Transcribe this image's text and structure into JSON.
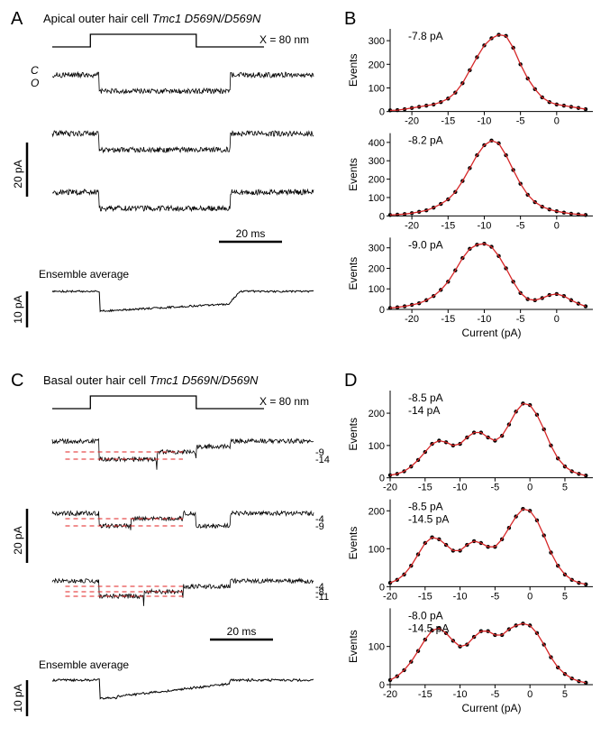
{
  "panels": {
    "A": {
      "label": "A",
      "title_prefix": "Apical outer hair cell ",
      "title_genotype": "Tmc1 D569N/D569N",
      "stimulus_label": "X = 80 nm",
      "state_closed": "C",
      "state_open": "O",
      "scale_y1": "20 pA",
      "scale_x": "20 ms",
      "ensemble_label": "Ensemble average",
      "scale_y2": "10 pA"
    },
    "B": {
      "label": "B",
      "ylabel": "Events",
      "xlabel": "Current (pA)",
      "charts": [
        {
          "peak_label": "-7.8 pA",
          "xlim": [
            -23,
            5
          ],
          "ylim": [
            0,
            350
          ],
          "xticks": [
            -20,
            -15,
            -10,
            -5,
            0
          ],
          "yticks": [
            0,
            100,
            200,
            300
          ],
          "data": [
            [
              -23,
              5
            ],
            [
              -22,
              6
            ],
            [
              -21,
              10
            ],
            [
              -20,
              15
            ],
            [
              -19,
              20
            ],
            [
              -18,
              25
            ],
            [
              -17,
              30
            ],
            [
              -16,
              40
            ],
            [
              -15,
              55
            ],
            [
              -14,
              80
            ],
            [
              -13,
              120
            ],
            [
              -12,
              175
            ],
            [
              -11,
              230
            ],
            [
              -10,
              280
            ],
            [
              -9,
              310
            ],
            [
              -8,
              325
            ],
            [
              -7,
              320
            ],
            [
              -6,
              270
            ],
            [
              -5,
              200
            ],
            [
              -4,
              140
            ],
            [
              -3,
              95
            ],
            [
              -2,
              60
            ],
            [
              -1,
              40
            ],
            [
              0,
              30
            ],
            [
              1,
              25
            ],
            [
              2,
              20
            ],
            [
              3,
              15
            ],
            [
              4,
              10
            ]
          ]
        },
        {
          "peak_label": "-8.2 pA",
          "xlim": [
            -23,
            5
          ],
          "ylim": [
            0,
            450
          ],
          "xticks": [
            -20,
            -15,
            -10,
            -5,
            0
          ],
          "yticks": [
            0,
            100,
            200,
            300,
            400
          ],
          "data": [
            [
              -23,
              5
            ],
            [
              -22,
              7
            ],
            [
              -21,
              10
            ],
            [
              -20,
              15
            ],
            [
              -19,
              22
            ],
            [
              -18,
              30
            ],
            [
              -17,
              45
            ],
            [
              -16,
              65
            ],
            [
              -15,
              90
            ],
            [
              -14,
              130
            ],
            [
              -13,
              190
            ],
            [
              -12,
              260
            ],
            [
              -11,
              330
            ],
            [
              -10,
              385
            ],
            [
              -9,
              410
            ],
            [
              -8,
              395
            ],
            [
              -7,
              330
            ],
            [
              -6,
              250
            ],
            [
              -5,
              175
            ],
            [
              -4,
              115
            ],
            [
              -3,
              75
            ],
            [
              -2,
              50
            ],
            [
              -1,
              35
            ],
            [
              0,
              25
            ],
            [
              1,
              18
            ],
            [
              2,
              12
            ],
            [
              3,
              8
            ],
            [
              4,
              5
            ]
          ]
        },
        {
          "peak_label": "-9.0 pA",
          "xlim": [
            -23,
            5
          ],
          "ylim": [
            0,
            350
          ],
          "xticks": [
            -20,
            -15,
            -10,
            -5,
            0
          ],
          "yticks": [
            0,
            100,
            200,
            300
          ],
          "data": [
            [
              -23,
              7
            ],
            [
              -22,
              10
            ],
            [
              -21,
              15
            ],
            [
              -20,
              22
            ],
            [
              -19,
              30
            ],
            [
              -18,
              45
            ],
            [
              -17,
              65
            ],
            [
              -16,
              95
            ],
            [
              -15,
              135
            ],
            [
              -14,
              190
            ],
            [
              -13,
              250
            ],
            [
              -12,
              295
            ],
            [
              -11,
              315
            ],
            [
              -10,
              320
            ],
            [
              -9,
              305
            ],
            [
              -8,
              260
            ],
            [
              -7,
              200
            ],
            [
              -6,
              135
            ],
            [
              -5,
              80
            ],
            [
              -4,
              50
            ],
            [
              -3,
              45
            ],
            [
              -2,
              55
            ],
            [
              -1,
              70
            ],
            [
              0,
              75
            ],
            [
              1,
              65
            ],
            [
              2,
              45
            ],
            [
              3,
              28
            ],
            [
              4,
              15
            ]
          ]
        }
      ]
    },
    "C": {
      "label": "C",
      "title_prefix": "Basal outer hair cell ",
      "title_genotype": "Tmc1 D569N/D569N",
      "stimulus_label": "X = 80 nm",
      "scale_y1": "20 pA",
      "scale_x": "20 ms",
      "ensemble_label": "Ensemble average",
      "scale_y2": "10 pA",
      "levels": {
        "trace1": [
          "-9",
          "-14"
        ],
        "trace2": [
          "-4",
          "-9"
        ],
        "trace3": [
          "-4",
          "-8",
          "-11"
        ]
      }
    },
    "D": {
      "label": "D",
      "ylabel": "Events",
      "xlabel": "Current (pA)",
      "charts": [
        {
          "peak_labels": [
            "-8.5 pA",
            "-14 pA"
          ],
          "xlim": [
            -20,
            9
          ],
          "ylim": [
            0,
            270
          ],
          "xticks": [
            -20,
            -15,
            -10,
            -5,
            0,
            5
          ],
          "yticks": [
            0,
            100,
            200
          ],
          "data": [
            [
              -20,
              8
            ],
            [
              -19,
              12
            ],
            [
              -18,
              20
            ],
            [
              -17,
              35
            ],
            [
              -16,
              55
            ],
            [
              -15,
              80
            ],
            [
              -14,
              105
            ],
            [
              -13,
              115
            ],
            [
              -12,
              110
            ],
            [
              -11,
              100
            ],
            [
              -10,
              105
            ],
            [
              -9,
              125
            ],
            [
              -8,
              140
            ],
            [
              -7,
              140
            ],
            [
              -6,
              125
            ],
            [
              -5,
              115
            ],
            [
              -4,
              130
            ],
            [
              -3,
              165
            ],
            [
              -2,
              205
            ],
            [
              -1,
              230
            ],
            [
              0,
              225
            ],
            [
              1,
              195
            ],
            [
              2,
              150
            ],
            [
              3,
              100
            ],
            [
              4,
              60
            ],
            [
              5,
              35
            ],
            [
              6,
              20
            ],
            [
              7,
              12
            ],
            [
              8,
              7
            ]
          ]
        },
        {
          "peak_labels": [
            "-8.5 pA",
            "-14.5 pA"
          ],
          "xlim": [
            -20,
            9
          ],
          "ylim": [
            0,
            230
          ],
          "xticks": [
            -20,
            -15,
            -10,
            -5,
            0,
            5
          ],
          "yticks": [
            0,
            100,
            200
          ],
          "data": [
            [
              -20,
              10
            ],
            [
              -19,
              18
            ],
            [
              -18,
              32
            ],
            [
              -17,
              55
            ],
            [
              -16,
              85
            ],
            [
              -15,
              115
            ],
            [
              -14,
              130
            ],
            [
              -13,
              125
            ],
            [
              -12,
              110
            ],
            [
              -11,
              95
            ],
            [
              -10,
              95
            ],
            [
              -9,
              110
            ],
            [
              -8,
              120
            ],
            [
              -7,
              115
            ],
            [
              -6,
              105
            ],
            [
              -5,
              105
            ],
            [
              -4,
              125
            ],
            [
              -3,
              155
            ],
            [
              -2,
              185
            ],
            [
              -1,
              205
            ],
            [
              0,
              200
            ],
            [
              1,
              175
            ],
            [
              2,
              135
            ],
            [
              3,
              90
            ],
            [
              4,
              55
            ],
            [
              5,
              32
            ],
            [
              6,
              18
            ],
            [
              7,
              10
            ],
            [
              8,
              6
            ]
          ]
        },
        {
          "peak_labels": [
            "-8.0 pA",
            "-14.5 pA"
          ],
          "xlim": [
            -20,
            9
          ],
          "ylim": [
            0,
            200
          ],
          "xticks": [
            -20,
            -15,
            -10,
            -5,
            0,
            5
          ],
          "yticks": [
            0,
            100
          ],
          "data": [
            [
              -20,
              12
            ],
            [
              -19,
              22
            ],
            [
              -18,
              38
            ],
            [
              -17,
              60
            ],
            [
              -16,
              88
            ],
            [
              -15,
              118
            ],
            [
              -14,
              142
            ],
            [
              -13,
              148
            ],
            [
              -12,
              135
            ],
            [
              -11,
              115
            ],
            [
              -10,
              100
            ],
            [
              -9,
              105
            ],
            [
              -8,
              125
            ],
            [
              -7,
              140
            ],
            [
              -6,
              140
            ],
            [
              -5,
              130
            ],
            [
              -4,
              130
            ],
            [
              -3,
              145
            ],
            [
              -2,
              155
            ],
            [
              -1,
              160
            ],
            [
              0,
              155
            ],
            [
              1,
              135
            ],
            [
              2,
              105
            ],
            [
              3,
              72
            ],
            [
              4,
              45
            ],
            [
              5,
              28
            ],
            [
              6,
              16
            ],
            [
              7,
              9
            ],
            [
              8,
              5
            ]
          ]
        }
      ]
    }
  },
  "style": {
    "trace_color": "#000000",
    "fit_color": "#d62728",
    "level_dash_color": "#e02020",
    "background": "#ffffff",
    "axis_color": "#000000",
    "panel_label_fontsize": 20,
    "title_fontsize": 13,
    "axis_fontsize": 12,
    "tick_fontsize": 11
  }
}
